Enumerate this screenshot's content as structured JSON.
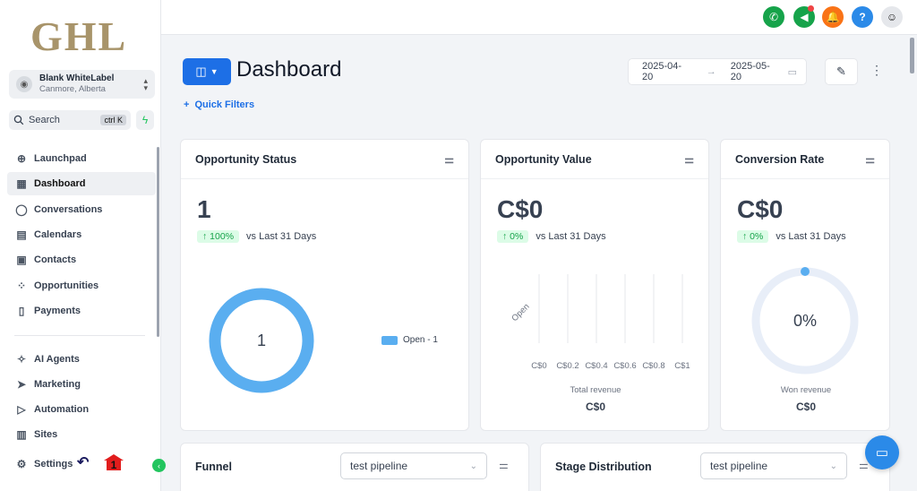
{
  "sidebar": {
    "logo": "GHL",
    "account": {
      "name": "Blank WhiteLabel",
      "location": "Canmore, Alberta"
    },
    "search": {
      "label": "Search",
      "shortcut": "ctrl K"
    },
    "items": [
      {
        "label": "Launchpad",
        "icon": "rocket-icon"
      },
      {
        "label": "Dashboard",
        "icon": "grid-icon"
      },
      {
        "label": "Conversations",
        "icon": "chat-bubble-icon"
      },
      {
        "label": "Calendars",
        "icon": "calendar-icon"
      },
      {
        "label": "Contacts",
        "icon": "contacts-icon"
      },
      {
        "label": "Opportunities",
        "icon": "opportunities-icon"
      },
      {
        "label": "Payments",
        "icon": "payments-icon"
      },
      {
        "label": "AI Agents",
        "icon": "sparkle-icon"
      },
      {
        "label": "Marketing",
        "icon": "send-icon"
      },
      {
        "label": "Automation",
        "icon": "automation-icon"
      },
      {
        "label": "Sites",
        "icon": "sites-icon"
      },
      {
        "label": "Settings",
        "icon": "gear-icon"
      }
    ],
    "annotation_number": "1"
  },
  "header": {
    "title": "Dashboard",
    "date_start": "2025-04-20",
    "date_end": "2025-05-20",
    "quick_filters": "Quick Filters"
  },
  "colors": {
    "accent": "#1d6fe6",
    "green": "#22c55e",
    "orange": "#f97316",
    "donut": "#5aaef0"
  },
  "cards": {
    "status": {
      "title": "Opportunity Status",
      "value": "1",
      "pct": "100%",
      "vs": "vs Last 31 Days",
      "donut_center": "1",
      "legend": "Open - 1"
    },
    "value": {
      "title": "Opportunity Value",
      "value": "C$0",
      "pct": "0%",
      "vs": "vs Last 31 Days",
      "y_label": "Open",
      "x_ticks": [
        "C$0",
        "C$0.2",
        "C$0.4",
        "C$0.6",
        "C$0.8",
        "C$1"
      ],
      "footer_label": "Total revenue",
      "footer_value": "C$0"
    },
    "conversion": {
      "title": "Conversion Rate",
      "value": "C$0",
      "pct": "0%",
      "vs": "vs Last 31 Days",
      "gauge": "0%",
      "footer_label": "Won revenue",
      "footer_value": "C$0"
    },
    "funnel": {
      "title": "Funnel",
      "pipeline": "test pipeline"
    },
    "stage": {
      "title": "Stage Distribution",
      "pipeline": "test pipeline"
    }
  }
}
